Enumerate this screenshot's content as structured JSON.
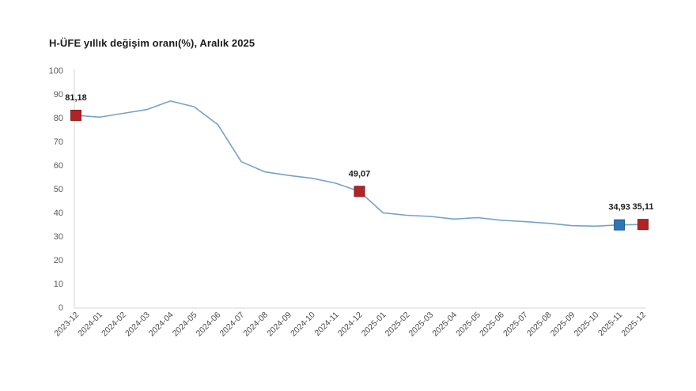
{
  "title": "H-ÜFE yıllık değişim oranı(%), Aralık 2025",
  "chart_data": {
    "type": "line",
    "title": "H-ÜFE yıllık değişim oranı(%), Aralık 2025",
    "categories": [
      "2023-12",
      "2024-01",
      "2024-02",
      "2024-03",
      "2024-04",
      "2024-05",
      "2024-06",
      "2024-07",
      "2024-08",
      "2024-09",
      "2024-10",
      "2024-11",
      "2024-12",
      "2025-01",
      "2025-02",
      "2025-03",
      "2025-04",
      "2025-05",
      "2025-06",
      "2025-07",
      "2025-08",
      "2025-09",
      "2025-10",
      "2025-11",
      "2025-12"
    ],
    "values": [
      81.18,
      80.4,
      82.0,
      83.6,
      87.2,
      84.8,
      77.3,
      61.6,
      57.3,
      55.8,
      54.6,
      52.5,
      49.07,
      40.0,
      39.0,
      38.5,
      37.4,
      38.0,
      36.9,
      36.3,
      35.6,
      34.6,
      34.4,
      34.93,
      35.11
    ],
    "labeled_points": [
      {
        "category": "2023-12",
        "index": 0,
        "label": "81,18",
        "marker_color": "#b02425",
        "marker_border": "#8a1a1c"
      },
      {
        "category": "2024-12",
        "index": 12,
        "label": "49,07",
        "marker_color": "#b02425",
        "marker_border": "#8a1a1c"
      },
      {
        "category": "2025-11",
        "index": 23,
        "label": "34,93",
        "marker_color": "#2e75b6",
        "marker_border": "#225a8e"
      },
      {
        "category": "2025-12",
        "index": 24,
        "label": "35,11",
        "marker_color": "#b02425",
        "marker_border": "#8a1a1c"
      }
    ],
    "line_color": "#74a2c9",
    "axis_color": "#d6d6d6",
    "tick_label_color": "#595959",
    "x_label_color": "#4a4a4a",
    "data_label_color": "#1a1a1a",
    "xlabel": "",
    "ylabel": "",
    "ylim": [
      0,
      100
    ],
    "ytick_step": 10,
    "grid": false,
    "legend": "none"
  }
}
